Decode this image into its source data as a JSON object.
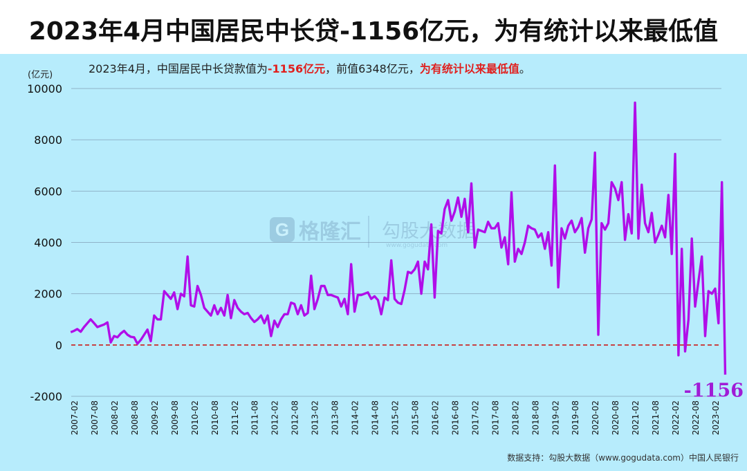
{
  "title": "2023年4月中国居民中长贷-1156亿元，为有统计以来最低值",
  "subtitle": {
    "part1": "2023年4月，中国居民中长贷款值为",
    "highlight1": "-1156亿元",
    "part2": "，前值6348亿元，",
    "highlight2": "为有统计以来最低值",
    "part3": "。"
  },
  "source": "数据支持：勾股大数据（www.gogudata.com）中国人民银行",
  "watermark": {
    "brand1": "格隆汇",
    "brand2": "勾股大数据",
    "url": "www.gogudata.com"
  },
  "colors": {
    "background": "#b7ecfc",
    "line": "#b00ee8",
    "zero_line": "#cc1a1a",
    "highlight": "#e0201e",
    "label": "#a01cd6"
  },
  "chart_data": {
    "type": "line",
    "ylabel": "(亿元)",
    "ylim": [
      -2000,
      10000
    ],
    "yticks": [
      -2000,
      0,
      2000,
      4000,
      6000,
      8000,
      10000
    ],
    "xticks": [
      "2007-02",
      "2007-08",
      "2008-02",
      "2008-08",
      "2009-02",
      "2009-08",
      "2010-02",
      "2010-08",
      "2011-02",
      "2011-08",
      "2012-02",
      "2012-08",
      "2013-02",
      "2013-08",
      "2014-02",
      "2014-08",
      "2015-02",
      "2015-08",
      "2016-02",
      "2016-08",
      "2017-02",
      "2017-08",
      "2018-02",
      "2018-08",
      "2019-02",
      "2019-08",
      "2020-02",
      "2020-08",
      "2021-02",
      "2021-08",
      "2022-02",
      "2022-08",
      "2023-02"
    ],
    "grid": true,
    "reference_line": 0,
    "end_label": "-1156",
    "series": [
      {
        "start": "2007-01",
        "frequency": "monthly",
        "values": [
          500,
          550,
          620,
          520,
          700,
          850,
          1000,
          850,
          700,
          750,
          800,
          880,
          100,
          350,
          300,
          450,
          550,
          400,
          320,
          300,
          50,
          200,
          400,
          600,
          150,
          1150,
          1000,
          1000,
          2100,
          1950,
          1800,
          2050,
          1400,
          2000,
          1900,
          3450,
          1550,
          1500,
          2300,
          1950,
          1450,
          1300,
          1150,
          1550,
          1200,
          1450,
          1150,
          1950,
          1050,
          1750,
          1450,
          1300,
          1200,
          1250,
          1050,
          900,
          1000,
          1150,
          850,
          1150,
          350,
          950,
          700,
          1000,
          1200,
          1200,
          1650,
          1600,
          1200,
          1550,
          1150,
          1250,
          2700,
          1400,
          1800,
          2300,
          2300,
          1950,
          1950,
          1900,
          1850,
          1500,
          1800,
          1200,
          3150,
          1300,
          1950,
          1950,
          2000,
          2050,
          1800,
          1900,
          1750,
          1200,
          1850,
          1750,
          3300,
          1800,
          1650,
          1600,
          2150,
          2850,
          2800,
          2950,
          3250,
          2000,
          3250,
          2950,
          4700,
          1850,
          4450,
          4350,
          5300,
          5650,
          4850,
          5200,
          5750,
          5000,
          5700,
          4400,
          6300,
          3800,
          4500,
          4450,
          4400,
          4800,
          4550,
          4550,
          4750,
          3800,
          4200,
          3150,
          5950,
          3250,
          3750,
          3550,
          4000,
          4650,
          4550,
          4500,
          4200,
          4350,
          3750,
          4400,
          3100,
          7000,
          2250,
          4550,
          4150,
          4650,
          4850,
          4400,
          4600,
          4950,
          3600,
          4550,
          4900,
          7500,
          400,
          4750,
          4500,
          4750,
          6350,
          6100,
          5650,
          6350,
          4100,
          5100,
          4350,
          9450,
          4150,
          6250,
          4750,
          4400,
          5150,
          4000,
          4300,
          4650,
          4200,
          5850,
          3550,
          7450,
          -400,
          3750,
          -250,
          1000,
          4150,
          1500,
          2500,
          3450,
          350,
          2100,
          2000,
          2200,
          850,
          6348,
          -1156
        ]
      }
    ]
  }
}
